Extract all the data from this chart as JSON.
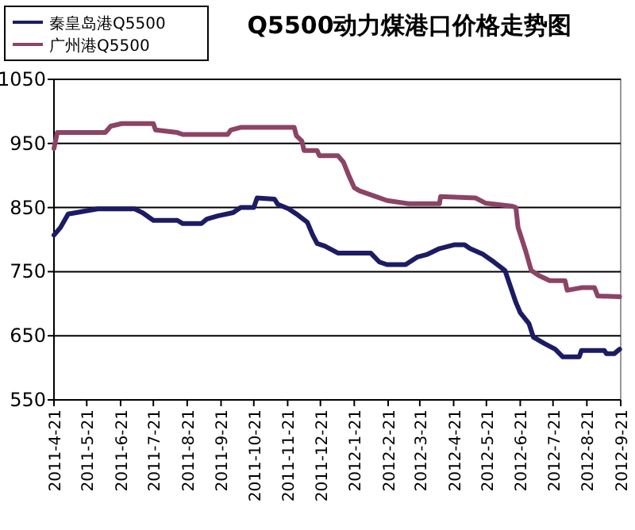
{
  "chart_data": {
    "type": "line",
    "title": "Q5500动力煤港口价格走势图",
    "series": [
      {
        "name": "秦皇岛港Q5500",
        "color": "#1c1c64",
        "x": [
          "2011-04-21",
          "2011-04-27",
          "2011-05-04",
          "2011-05-31",
          "2011-07-04",
          "2011-07-11",
          "2011-07-21",
          "2011-08-12",
          "2011-08-17",
          "2011-09-03",
          "2011-09-08",
          "2011-09-18",
          "2011-10-02",
          "2011-10-09",
          "2011-10-21",
          "2011-10-24",
          "2011-11-09",
          "2011-11-12",
          "2011-11-22",
          "2011-11-29",
          "2011-12-09",
          "2011-12-14",
          "2011-12-18",
          "2011-12-25",
          "2012-01-06",
          "2012-02-05",
          "2012-02-13",
          "2012-02-20",
          "2012-03-08",
          "2012-03-19",
          "2012-03-28",
          "2012-04-08",
          "2012-04-22",
          "2012-05-01",
          "2012-05-06",
          "2012-05-18",
          "2012-05-28",
          "2012-06-07",
          "2012-06-12",
          "2012-06-17",
          "2012-06-21",
          "2012-06-29",
          "2012-07-03",
          "2012-07-13",
          "2012-07-23",
          "2012-07-30",
          "2012-08-14",
          "2012-08-16",
          "2012-09-06",
          "2012-09-08",
          "2012-09-15",
          "2012-09-20"
        ],
        "values": [
          807,
          819,
          840,
          848,
          848,
          842,
          830,
          830,
          825,
          825,
          832,
          837,
          842,
          850,
          850,
          865,
          863,
          855,
          848,
          840,
          827,
          807,
          794,
          790,
          779,
          779,
          765,
          761,
          761,
          773,
          777,
          786,
          792,
          792,
          786,
          777,
          765,
          752,
          727,
          702,
          686,
          669,
          648,
          638,
          629,
          617,
          617,
          627,
          627,
          622,
          622,
          629
        ]
      },
      {
        "name": "广州港Q5500",
        "color": "#8b4466",
        "x": [
          "2011-04-21",
          "2011-04-24",
          "2011-06-07",
          "2011-06-12",
          "2011-06-22",
          "2011-07-21",
          "2011-07-23",
          "2011-08-12",
          "2011-08-17",
          "2011-09-27",
          "2011-09-30",
          "2011-10-09",
          "2011-11-27",
          "2011-11-29",
          "2011-12-04",
          "2011-12-06",
          "2011-12-18",
          "2011-12-20",
          "2012-01-06",
          "2012-01-11",
          "2012-01-16",
          "2012-01-21",
          "2012-01-26",
          "2012-02-10",
          "2012-02-20",
          "2012-03-11",
          "2012-04-08",
          "2012-04-09",
          "2012-05-11",
          "2012-05-20",
          "2012-06-14",
          "2012-06-17",
          "2012-06-19",
          "2012-06-26",
          "2012-07-01",
          "2012-07-08",
          "2012-07-18",
          "2012-08-01",
          "2012-08-03",
          "2012-08-16",
          "2012-08-28",
          "2012-08-31",
          "2012-09-20"
        ],
        "values": [
          942,
          967,
          967,
          977,
          981,
          981,
          971,
          967,
          964,
          964,
          971,
          975,
          975,
          962,
          954,
          939,
          939,
          931,
          931,
          921,
          900,
          881,
          876,
          867,
          861,
          856,
          856,
          867,
          865,
          857,
          852,
          850,
          819,
          782,
          752,
          744,
          736,
          736,
          721,
          725,
          725,
          712,
          711
        ]
      }
    ],
    "xlim": [
      "2011-04-21",
      "2012-09-21"
    ],
    "xticks": [
      {
        "value": "2011-04-21",
        "label": "2011-4-21"
      },
      {
        "value": "2011-05-21",
        "label": "2011-5-21"
      },
      {
        "value": "2011-06-21",
        "label": "2011-6-21"
      },
      {
        "value": "2011-07-21",
        "label": "2011-7-21"
      },
      {
        "value": "2011-08-21",
        "label": "2011-8-21"
      },
      {
        "value": "2011-09-21",
        "label": "2011-9-21"
      },
      {
        "value": "2011-10-21",
        "label": "2011-10-21"
      },
      {
        "value": "2011-11-21",
        "label": "2011-11-21"
      },
      {
        "value": "2011-12-21",
        "label": "2011-12-21"
      },
      {
        "value": "2012-01-21",
        "label": "2012-1-21"
      },
      {
        "value": "2012-02-21",
        "label": "2012-2-21"
      },
      {
        "value": "2012-03-21",
        "label": "2012-3-21"
      },
      {
        "value": "2012-04-21",
        "label": "2012-4-21"
      },
      {
        "value": "2012-05-21",
        "label": "2012-5-21"
      },
      {
        "value": "2012-06-21",
        "label": "2012-6-21"
      },
      {
        "value": "2012-07-21",
        "label": "2012-7-21"
      },
      {
        "value": "2012-08-21",
        "label": "2012-8-21"
      },
      {
        "value": "2012-09-21",
        "label": "2012-9-21"
      }
    ],
    "ylim": [
      550,
      1050
    ],
    "yticks": [
      550,
      650,
      750,
      850,
      950,
      1050
    ],
    "grid": "y",
    "legend": "top left"
  }
}
